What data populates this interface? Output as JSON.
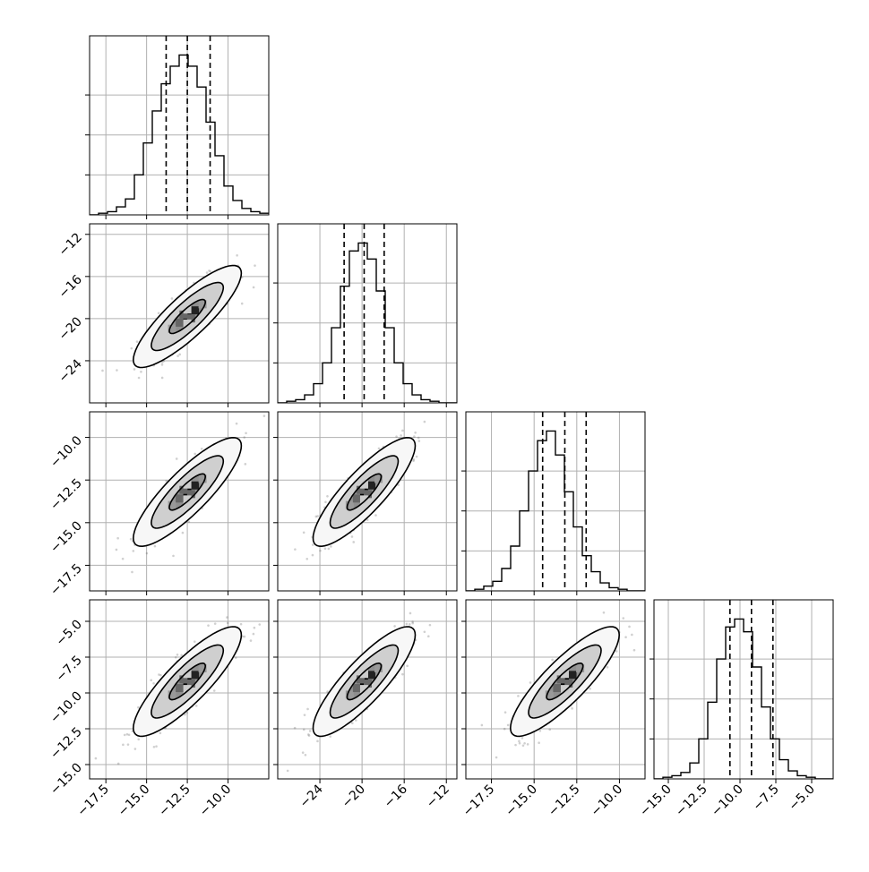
{
  "chart_data": {
    "type": "corner",
    "parameters": [
      {
        "index": 0,
        "range": [
          -18.5,
          -7.5
        ],
        "ticks": [
          -17.5,
          -15.0,
          -12.5,
          -10.0
        ],
        "tick_labels": [
          "−17.5",
          "−15.0",
          "−12.5",
          "−10.0"
        ],
        "mean": -12.5,
        "std": 1.3,
        "quantiles": [
          -13.8,
          -12.5,
          -11.1
        ],
        "hist_counts": [
          0,
          1,
          2,
          5,
          10,
          25,
          45,
          65,
          82,
          93,
          100,
          93,
          80,
          58,
          37,
          18,
          9,
          4,
          2,
          1
        ]
      },
      {
        "index": 1,
        "range": [
          -28,
          -11
        ],
        "ticks": [
          -24,
          -20,
          -16,
          -12
        ],
        "tick_labels": [
          "−24",
          "−20",
          "−16",
          "−12"
        ],
        "mean": -19.8,
        "std": 1.9,
        "quantiles": [
          -21.7,
          -19.8,
          -17.9
        ],
        "hist_counts": [
          0,
          1,
          2,
          5,
          12,
          25,
          47,
          73,
          95,
          100,
          90,
          70,
          47,
          25,
          12,
          5,
          2,
          1,
          0,
          0
        ]
      },
      {
        "index": 2,
        "range": [
          -19,
          -8.5
        ],
        "ticks": [
          -17.5,
          -15.0,
          -12.5,
          -10.0
        ],
        "tick_labels": [
          "−17.5",
          "−15.0",
          "−12.5",
          "−10.0"
        ],
        "mean": -13.2,
        "std": 1.25,
        "quantiles": [
          -14.5,
          -13.2,
          -11.95
        ],
        "hist_counts": [
          0,
          1,
          3,
          6,
          14,
          28,
          50,
          75,
          94,
          100,
          85,
          62,
          40,
          22,
          12,
          5,
          2,
          1,
          0,
          0
        ]
      },
      {
        "index": 3,
        "range": [
          -16,
          -3.5
        ],
        "ticks": [
          -15.0,
          -12.5,
          -10.0,
          -7.5,
          -5.0
        ],
        "tick_labels": [
          "−15.0",
          "−12.5",
          "−10.0",
          "−7.5",
          "−5.0"
        ],
        "mean": -9.2,
        "std": 1.5,
        "quantiles": [
          -10.7,
          -9.2,
          -7.7
        ],
        "hist_counts": [
          0,
          1,
          2,
          4,
          10,
          25,
          48,
          75,
          95,
          100,
          92,
          70,
          45,
          25,
          12,
          5,
          2,
          1,
          0,
          0
        ]
      }
    ],
    "hist_ylim_max": 100,
    "hist_y_ticks": [
      25,
      50,
      75
    ],
    "correlation": 0.85,
    "contour_levels": [
      0.5,
      1.0,
      1.5
    ],
    "contour_color": "#000000",
    "hist_color": "#000000",
    "scatter_color": "#555555",
    "density_colors": [
      "#f2f2f2",
      "#cccccc",
      "#999999",
      "#666666",
      "#222222",
      "#000000"
    ],
    "grid": true,
    "n_scatter": 350
  }
}
